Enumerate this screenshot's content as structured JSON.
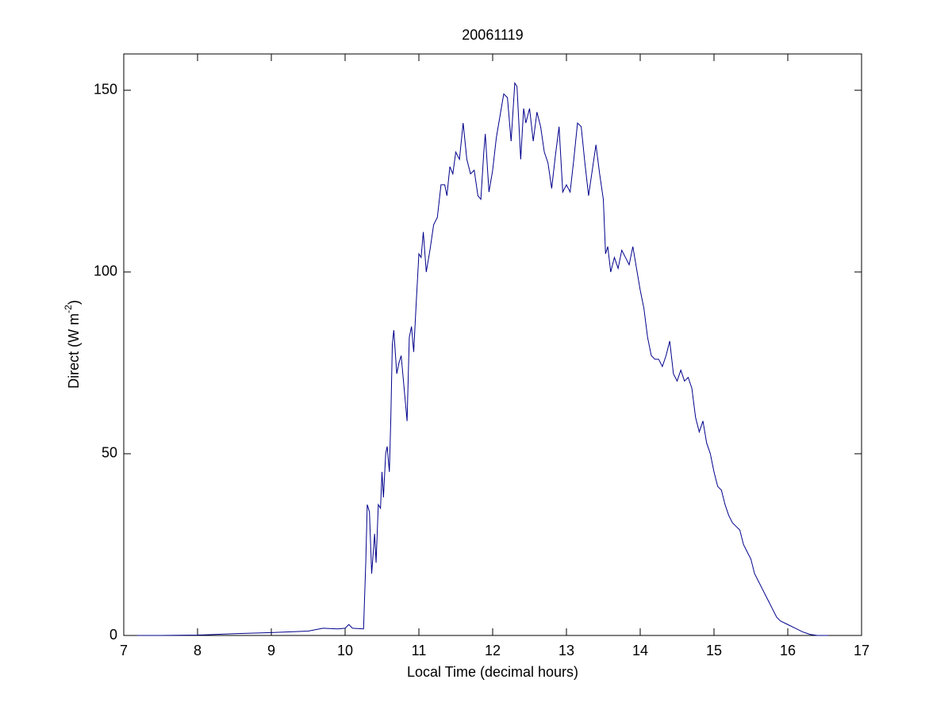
{
  "chart_data": {
    "type": "line",
    "title": "20061119",
    "xlabel": "Local Time (decimal hours)",
    "ylabel": {
      "text": "Direct (W m",
      "superscript": "-2",
      "suffix": ")"
    },
    "xlim": [
      7,
      17
    ],
    "xticks": [
      7,
      8,
      9,
      10,
      11,
      12,
      13,
      14,
      15,
      16,
      17
    ],
    "ylim": [
      0,
      160
    ],
    "yticks": [
      0,
      50,
      100,
      150
    ],
    "grid": false,
    "series": [
      {
        "color": "#00008b",
        "x": [
          7.18,
          7.5,
          8.0,
          8.5,
          9.0,
          9.5,
          9.7,
          9.9,
          10.0,
          10.05,
          10.1,
          10.25,
          10.28,
          10.3,
          10.33,
          10.36,
          10.4,
          10.42,
          10.45,
          10.48,
          10.5,
          10.52,
          10.55,
          10.57,
          10.6,
          10.62,
          10.64,
          10.66,
          10.7,
          10.73,
          10.76,
          10.8,
          10.84,
          10.87,
          10.9,
          10.93,
          10.96,
          11.0,
          11.03,
          11.06,
          11.1,
          11.15,
          11.2,
          11.25,
          11.3,
          11.35,
          11.38,
          11.42,
          11.46,
          11.5,
          11.55,
          11.6,
          11.65,
          11.7,
          11.75,
          11.8,
          11.84,
          11.88,
          11.9,
          11.95,
          12.0,
          12.05,
          12.1,
          12.15,
          12.2,
          12.25,
          12.3,
          12.33,
          12.38,
          12.42,
          12.45,
          12.5,
          12.55,
          12.6,
          12.65,
          12.7,
          12.75,
          12.8,
          12.85,
          12.9,
          12.95,
          13.0,
          13.05,
          13.1,
          13.15,
          13.2,
          13.25,
          13.3,
          13.35,
          13.4,
          13.45,
          13.5,
          13.53,
          13.56,
          13.6,
          13.65,
          13.7,
          13.75,
          13.8,
          13.85,
          13.9,
          13.95,
          14.0,
          14.05,
          14.1,
          14.15,
          14.2,
          14.25,
          14.3,
          14.35,
          14.4,
          14.45,
          14.5,
          14.55,
          14.6,
          14.65,
          14.7,
          14.75,
          14.8,
          14.85,
          14.9,
          14.95,
          15.0,
          15.05,
          15.1,
          15.15,
          15.2,
          15.25,
          15.3,
          15.35,
          15.4,
          15.45,
          15.5,
          15.55,
          15.6,
          15.65,
          15.7,
          15.75,
          15.8,
          15.85,
          15.9,
          16.0,
          16.1,
          16.2,
          16.3,
          16.4,
          16.55
        ],
        "values": [
          0,
          0,
          0.1,
          0.5,
          0.8,
          1.2,
          2,
          1.8,
          2,
          3,
          2,
          1.8,
          20,
          36,
          34,
          17,
          28,
          20,
          36,
          35,
          45,
          38,
          50,
          52,
          45,
          60,
          80,
          84,
          72,
          75,
          77,
          68,
          59,
          82,
          85,
          78,
          90,
          105,
          104,
          111,
          100,
          106,
          113,
          115,
          124,
          124,
          121,
          129,
          127,
          133,
          131,
          141,
          131,
          127,
          128,
          121,
          120,
          133,
          138,
          122,
          128,
          137,
          143,
          149,
          148,
          136,
          152,
          151,
          131,
          145,
          141,
          145,
          136,
          144,
          140,
          133,
          130,
          123,
          132,
          140,
          122,
          124,
          122,
          131,
          141,
          140,
          130,
          121,
          128,
          135,
          127,
          120,
          105,
          107,
          100,
          104,
          101,
          106,
          104,
          102,
          107,
          101,
          95,
          90,
          82,
          77,
          76,
          76,
          74,
          77,
          81,
          72,
          70,
          73,
          70,
          71,
          68,
          60,
          56,
          59,
          53,
          50,
          45,
          41,
          40,
          36,
          33,
          31,
          30,
          29,
          25,
          23,
          21,
          17,
          15,
          13,
          11,
          9,
          7,
          5,
          4,
          3,
          2,
          1,
          0.3,
          0,
          0
        ]
      }
    ]
  }
}
